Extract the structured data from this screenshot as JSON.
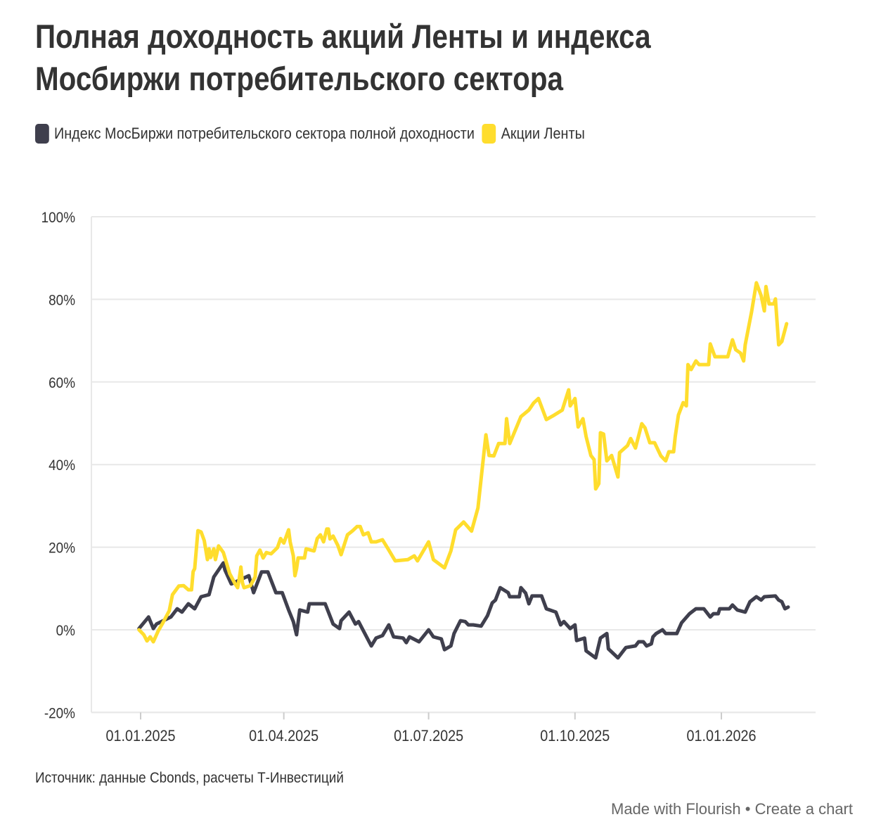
{
  "chart_data": {
    "type": "line",
    "title": "Полная доходность акций Ленты и индекса Мосбиржи потребительского сектора",
    "title_lines": [
      "Полная доходность акций Ленты и индекса",
      "Мосбиржи потребительского сектора"
    ],
    "x_unit": "days since 01.01.2025",
    "xlabel": "",
    "ylabel": "",
    "ylim": [
      -20,
      100
    ],
    "xlim": [
      -30,
      420
    ],
    "y_ticks": [
      -20,
      0,
      20,
      40,
      60,
      80,
      100
    ],
    "y_tick_labels": [
      "-20%",
      "0%",
      "20%",
      "40%",
      "60%",
      "80%",
      "100%"
    ],
    "x_ticks": [
      0,
      90,
      181,
      273,
      365
    ],
    "x_tick_labels": [
      "01.01.2025",
      "01.04.2025",
      "01.07.2025",
      "01.10.2025",
      "01.01.2026"
    ],
    "grid": true,
    "legend_position": "top-left",
    "series": [
      {
        "name": "Индекс МосБиржи потребительского сектора полной доходности",
        "color": "#3f3f4d",
        "x": [
          -1,
          5,
          8,
          10,
          19,
          23,
          26,
          30,
          34,
          38,
          43,
          46,
          52,
          53,
          57,
          68,
          71,
          76,
          80,
          85,
          89,
          93,
          96,
          98,
          100,
          105,
          106,
          116,
          121,
          125,
          126,
          131,
          135,
          137,
          145,
          148,
          152,
          156,
          159,
          165,
          167,
          169,
          175,
          181,
          184,
          189,
          191,
          195,
          197,
          201,
          204,
          206,
          209,
          214,
          218,
          221,
          223,
          226,
          231,
          232,
          238,
          239,
          242,
          244,
          246,
          252,
          255,
          261,
          264,
          266,
          270,
          273,
          274,
          279,
          280,
          286,
          289,
          293,
          294,
          300,
          305,
          311,
          313,
          316,
          318,
          321,
          322,
          324,
          328,
          330,
          337,
          340,
          345,
          349,
          354,
          358,
          360,
          363,
          364,
          370,
          372,
          375,
          380,
          383,
          387,
          390,
          392,
          399,
          401,
          403,
          405,
          407
        ],
        "y": [
          0.3,
          3.1,
          0.3,
          1.4,
          3.1,
          5.1,
          4.3,
          6.3,
          5.1,
          8.0,
          8.5,
          12.8,
          16.2,
          14.5,
          11.1,
          13.1,
          9.0,
          14.0,
          14.0,
          9.0,
          9.0,
          4.8,
          2.0,
          -1.2,
          4.8,
          4.3,
          6.3,
          6.3,
          1.4,
          0.3,
          2.2,
          4.3,
          1.4,
          2.0,
          -3.9,
          -2.0,
          -1.4,
          1.2,
          -1.7,
          -2.0,
          -3.1,
          -1.7,
          -2.9,
          0,
          -1.7,
          -2.2,
          -4.8,
          -3.9,
          -0.9,
          2.2,
          2.0,
          1.2,
          1.2,
          0.9,
          3.4,
          6.5,
          7.2,
          10.2,
          9.0,
          8.0,
          8.0,
          10.2,
          8.9,
          6.3,
          8.2,
          8.2,
          5.1,
          4.3,
          1.2,
          2.0,
          0.3,
          1.2,
          -2.6,
          -2.0,
          -5.1,
          -6.8,
          -2.0,
          -0.9,
          -4.6,
          -6.8,
          -4.3,
          -3.9,
          -2.9,
          -2.9,
          -3.9,
          -3.4,
          -1.7,
          -0.9,
          0,
          -0.9,
          -0.9,
          1.7,
          3.9,
          5.1,
          5.1,
          3.1,
          3.9,
          3.9,
          5.1,
          5.1,
          6.0,
          4.8,
          4.3,
          6.8,
          8.0,
          7.2,
          8.0,
          8.2,
          7.2,
          6.8,
          5.1,
          5.5
        ]
      },
      {
        "name": "Акции Ленты",
        "color": "#ffdd2d",
        "x": [
          -1,
          2,
          4,
          6,
          8,
          11,
          14,
          18,
          20,
          24,
          27,
          30,
          32,
          33,
          34,
          36,
          38,
          40,
          42,
          43,
          44,
          46,
          47,
          49,
          52,
          56,
          59,
          61,
          62,
          63,
          64,
          65,
          69,
          72,
          73,
          75,
          77,
          79,
          82,
          86,
          88,
          90,
          93,
          94,
          96,
          97,
          98,
          99,
          103,
          104,
          109,
          111,
          113,
          115,
          117,
          118,
          119,
          121,
          124,
          126,
          130,
          133,
          136,
          138,
          140,
          143,
          145,
          148,
          152,
          156,
          160,
          168,
          172,
          174,
          181,
          184,
          191,
          195,
          198,
          203,
          208,
          212,
          214,
          217,
          219,
          222,
          225,
          229,
          230,
          232,
          239,
          244,
          247,
          250,
          255,
          260,
          265,
          269,
          270,
          273,
          275,
          278,
          280,
          283,
          285,
          286,
          288,
          289,
          291,
          293,
          296,
          300,
          301,
          306,
          308,
          311,
          315,
          317,
          320,
          323,
          327,
          330,
          332,
          335,
          336,
          338,
          341,
          343,
          344,
          346,
          349,
          351,
          357,
          358,
          361,
          369,
          372,
          374,
          377,
          379,
          380,
          384,
          387,
          390,
          392,
          393,
          395,
          398,
          399,
          401,
          403,
          406
        ],
        "y": [
          0,
          -1.2,
          -2.7,
          -1.7,
          -2.9,
          -0.3,
          1.7,
          4.6,
          8.5,
          10.6,
          10.7,
          9.7,
          9.7,
          14.1,
          14.8,
          24.0,
          23.7,
          21.6,
          17.0,
          19.6,
          17.5,
          19.6,
          17.0,
          20.3,
          18.7,
          13.6,
          11.4,
          10.2,
          12.4,
          15.2,
          11.4,
          10.2,
          10.7,
          12.8,
          17.9,
          19.3,
          17.4,
          18.7,
          18.4,
          19.9,
          22.1,
          21.0,
          24.2,
          21.3,
          17.9,
          13.1,
          14.8,
          17.4,
          17.4,
          19.6,
          19.1,
          22.1,
          23.0,
          21.3,
          24.4,
          24.4,
          22.0,
          22.7,
          20.4,
          18.2,
          23.0,
          23.9,
          25.0,
          25.0,
          23.0,
          23.5,
          21.3,
          21.3,
          21.8,
          19.3,
          16.7,
          17.0,
          17.9,
          16.7,
          21.3,
          17.0,
          15.0,
          19.1,
          24.2,
          26.1,
          23.9,
          29.5,
          36.6,
          47.2,
          42.2,
          42.1,
          45.1,
          45.1,
          51.1,
          45.1,
          51.6,
          53.2,
          54.9,
          56.0,
          50.9,
          52.0,
          53.2,
          58.1,
          54.2,
          56.0,
          49.1,
          51.1,
          46.8,
          42.2,
          41.2,
          34.1,
          35.4,
          47.7,
          47.4,
          40.9,
          42.2,
          37.0,
          42.9,
          44.6,
          46.3,
          44.0,
          49.9,
          48.9,
          45.3,
          45.3,
          42.1,
          40.9,
          43.1,
          43.1,
          46.8,
          52.0,
          55.0,
          54.2,
          64.2,
          63.0,
          65.1,
          64.2,
          64.2,
          69.2,
          66.1,
          66.1,
          70.2,
          67.8,
          67.0,
          65.1,
          69.0,
          77.0,
          84.0,
          80.9,
          77.2,
          83.1,
          78.9,
          78.9,
          80.1,
          69.0,
          69.8,
          74.1
        ]
      }
    ]
  },
  "source": "Источник: данные Cbonds, расчеты Т-Инвестиций",
  "footer": {
    "made_with": "Made with Flourish",
    "separator": "•",
    "create": "Create a chart"
  }
}
